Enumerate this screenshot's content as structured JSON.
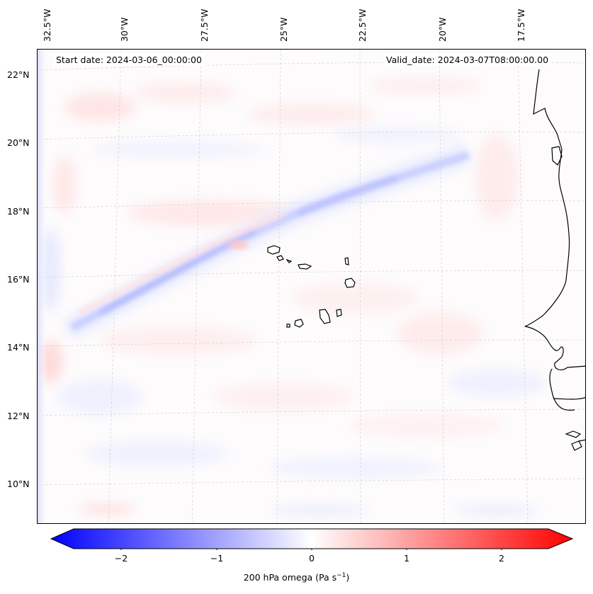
{
  "map": {
    "start_date_label": "Start date: 2024-03-06_00:00:00",
    "valid_date_label": "Valid_date: 2024-03-07T08:00:00.00",
    "lat_labels": [
      "22°N",
      "20°N",
      "18°N",
      "16°N",
      "14°N",
      "12°N",
      "10°N"
    ],
    "lon_labels": [
      "32.5°W",
      "30°W",
      "27.5°W",
      "25°W",
      "22.5°W",
      "20°W",
      "17.5°W"
    ],
    "field": "200 hPa omega",
    "features": [
      "Cape Verde islands",
      "West African coastline"
    ],
    "colors": {
      "negative": "#0000ff",
      "zero": "#ffffff",
      "positive": "#ff0000"
    }
  },
  "colorbar": {
    "ticks": [
      "−2",
      "−1",
      "0",
      "1",
      "2"
    ],
    "label_prefix": "200 hPa omega (Pa s",
    "label_exp": "−1",
    "label_suffix": ")",
    "range": [
      -2.6,
      2.6
    ]
  }
}
